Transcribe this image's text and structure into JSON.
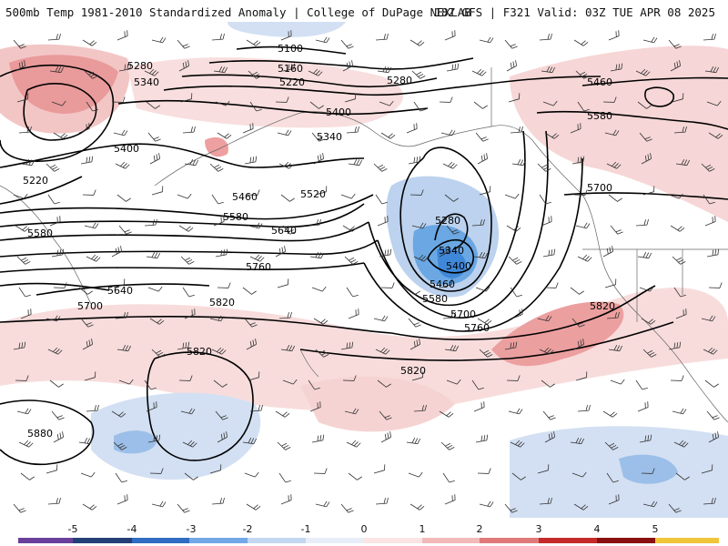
{
  "header": {
    "left_title": "500mb Temp 1981-2010 Standardized Anomaly | College of DuPage NEXLAB",
    "right_title": "18Z GFS | F321 Valid: 03Z TUE APR 08 2025"
  },
  "map": {
    "contour_labels": [
      "5100",
      "5160",
      "5220",
      "5280",
      "5340",
      "5280",
      "5220",
      "5400",
      "5340",
      "5400",
      "5460",
      "5520",
      "5580",
      "5640",
      "5580",
      "5280",
      "5340",
      "5400",
      "5460",
      "5580",
      "5700",
      "5760",
      "5640",
      "5760",
      "5700",
      "5820",
      "5820",
      "5820",
      "5880",
      "5460",
      "5580",
      "5700",
      "5820"
    ],
    "colors": {
      "warm_light": "#f6d3d3",
      "warm_mid": "#eea6a6",
      "warm_strong": "#e06c6c",
      "cold_light": "#d7e3f3",
      "cold_mid": "#a9c5ea",
      "cold_strong": "#4d97e0",
      "contour": "#000000",
      "border": "#555555"
    }
  },
  "legend": {
    "ticks": [
      "-5",
      "-4",
      "-3",
      "-2",
      "-1",
      "0",
      "1",
      "2",
      "3",
      "4",
      "5"
    ],
    "colors": [
      "#6a3f9b",
      "#243f78",
      "#2f6cc2",
      "#73a8e6",
      "#c4d7f1",
      "#e8eef8",
      "#fbe4e4",
      "#f2b9b9",
      "#e07a7a",
      "#c62b2b",
      "#8a1010",
      "#f0c53a"
    ]
  }
}
